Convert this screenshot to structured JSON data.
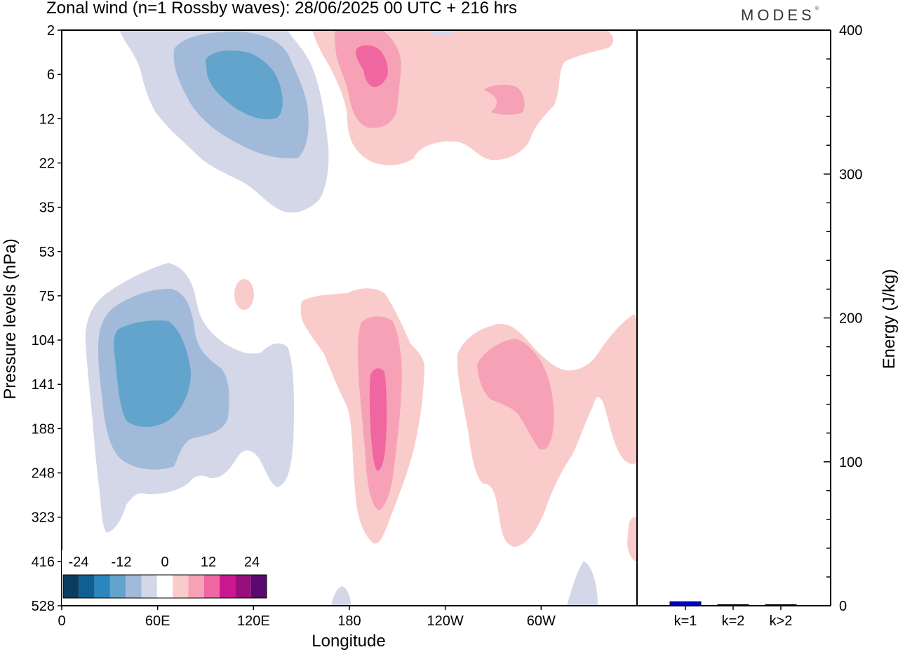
{
  "title": "Zonal wind (n=1 Rossby waves):  28/06/2025  00 UTC  + 216 hrs",
  "brand": "MODES",
  "brand_mark": "©",
  "chart_data": [
    {
      "type": "heatmap",
      "variable": "Zonal wind (n=1 Rossby waves)",
      "xlabel": "Longitude",
      "ylabel": "Pressure levels (hPa)",
      "x_ticks": [
        "0",
        "60E",
        "120E",
        "180",
        "120W",
        "60W"
      ],
      "x_range": [
        0,
        360
      ],
      "y_ticks": [
        "2",
        "6",
        "12",
        "22",
        "35",
        "53",
        "75",
        "104",
        "141",
        "188",
        "248",
        "323",
        "416",
        "528"
      ],
      "contour_levels": [
        -24,
        -20,
        -16,
        -12,
        -8,
        -4,
        4,
        8,
        12,
        16,
        20,
        24
      ],
      "colorbar_labels": [
        "-24",
        "-12",
        "0",
        "12",
        "24"
      ],
      "colorbar_colors": [
        "#0c3d5e",
        "#0f5f93",
        "#2a86bd",
        "#63a4cc",
        "#a1bad9",
        "#d4d7e8",
        "#ffffff",
        "#f9cccb",
        "#f7a1b6",
        "#f066a0",
        "#c9178f",
        "#970e7d",
        "#5a0a6e"
      ],
      "regions": [
        {
          "sign": "negative",
          "lon": [
            20,
            165
          ],
          "level": [
            "2",
            "35"
          ],
          "min": -12
        },
        {
          "sign": "positive",
          "lon": [
            155,
            335
          ],
          "level": [
            "2",
            "22"
          ],
          "max": 12
        },
        {
          "sign": "negative",
          "lon": [
            15,
            145
          ],
          "level": [
            "53",
            "323"
          ],
          "min": -12
        },
        {
          "sign": "positive",
          "lon": [
            150,
            225
          ],
          "level": [
            "75",
            "323"
          ],
          "max": 16
        },
        {
          "sign": "positive",
          "lon": [
            240,
            360
          ],
          "level": [
            "104",
            "323"
          ],
          "max": 12
        },
        {
          "sign": "negative",
          "lon": [
            315,
            335
          ],
          "level": [
            "416",
            "528"
          ],
          "min": -4
        }
      ]
    },
    {
      "type": "bar",
      "categories": [
        "k=1",
        "k=2",
        "k>2"
      ],
      "values": [
        2.8,
        0.5,
        0.6
      ],
      "ylabel": "Energy (J/kg)",
      "ylim": [
        0,
        400
      ],
      "y_ticks": [
        "0",
        "100",
        "200",
        "300",
        "400"
      ],
      "colors": [
        "#0000cc",
        "#000000",
        "#000000"
      ]
    }
  ]
}
